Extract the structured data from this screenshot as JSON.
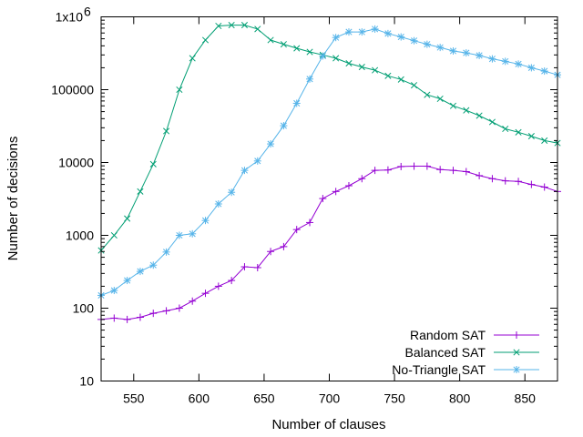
{
  "chart_data": {
    "type": "line",
    "title": "",
    "xlabel": "Number of clauses",
    "ylabel": "Number of decisions",
    "xlim": [
      525,
      875
    ],
    "ylim": [
      10,
      1000000
    ],
    "yscale": "log",
    "grid": false,
    "legend_position": "bottom-right",
    "xticks": [
      550,
      600,
      650,
      700,
      750,
      800,
      850
    ],
    "xtick_labels": [
      "550",
      "600",
      "650",
      "700",
      "750",
      "800",
      "850"
    ],
    "yticks": [
      10,
      100,
      1000,
      10000,
      100000,
      1000000
    ],
    "ytick_labels": [
      "10",
      "100",
      "1000",
      "10000",
      "100000",
      "1x10"
    ],
    "ytick_top_exponent": "6",
    "series": [
      {
        "name": "Random SAT",
        "color": "#9400d3",
        "marker": "plus",
        "x": [
          525,
          535,
          545,
          555,
          565,
          575,
          585,
          595,
          605,
          615,
          625,
          635,
          645,
          655,
          665,
          675,
          685,
          695,
          705,
          715,
          725,
          735,
          745,
          755,
          765,
          775,
          785,
          795,
          805,
          815,
          825,
          835,
          845,
          855,
          865,
          875
        ],
        "y": [
          70,
          73,
          70,
          75,
          85,
          92,
          100,
          125,
          160,
          200,
          240,
          370,
          360,
          600,
          700,
          1200,
          1500,
          3200,
          4000,
          4800,
          6000,
          7800,
          7900,
          8800,
          8900,
          8900,
          8000,
          7800,
          7500,
          6600,
          6000,
          5600,
          5500,
          5000,
          4600,
          4000
        ]
      },
      {
        "name": "Balanced SAT",
        "color": "#009e73",
        "marker": "x",
        "x": [
          525,
          535,
          545,
          555,
          565,
          575,
          585,
          595,
          605,
          615,
          625,
          635,
          645,
          655,
          665,
          675,
          685,
          695,
          705,
          715,
          725,
          735,
          745,
          755,
          765,
          775,
          785,
          795,
          805,
          815,
          825,
          835,
          845,
          855,
          865,
          875
        ],
        "y": [
          620,
          1000,
          1700,
          4000,
          9500,
          27000,
          100000,
          270000,
          480000,
          750000,
          770000,
          770000,
          680000,
          480000,
          420000,
          370000,
          330000,
          300000,
          270000,
          230000,
          205000,
          185000,
          155000,
          138000,
          115000,
          85000,
          75000,
          60000,
          52000,
          44000,
          36000,
          29000,
          26000,
          23000,
          20000,
          18500
        ]
      },
      {
        "name": "No-Triangle SAT",
        "color": "#56b4e9",
        "marker": "star",
        "x": [
          525,
          535,
          545,
          555,
          565,
          575,
          585,
          595,
          605,
          615,
          625,
          635,
          645,
          655,
          665,
          675,
          685,
          695,
          705,
          715,
          725,
          735,
          745,
          755,
          765,
          775,
          785,
          795,
          805,
          815,
          825,
          835,
          845,
          855,
          865,
          875
        ],
        "y": [
          150,
          175,
          240,
          320,
          390,
          590,
          1000,
          1050,
          1600,
          2700,
          3900,
          7800,
          10500,
          18000,
          32000,
          65000,
          140000,
          290000,
          520000,
          620000,
          620000,
          680000,
          590000,
          530000,
          470000,
          420000,
          380000,
          340000,
          320000,
          295000,
          265000,
          245000,
          225000,
          200000,
          180000,
          160000
        ]
      }
    ]
  }
}
